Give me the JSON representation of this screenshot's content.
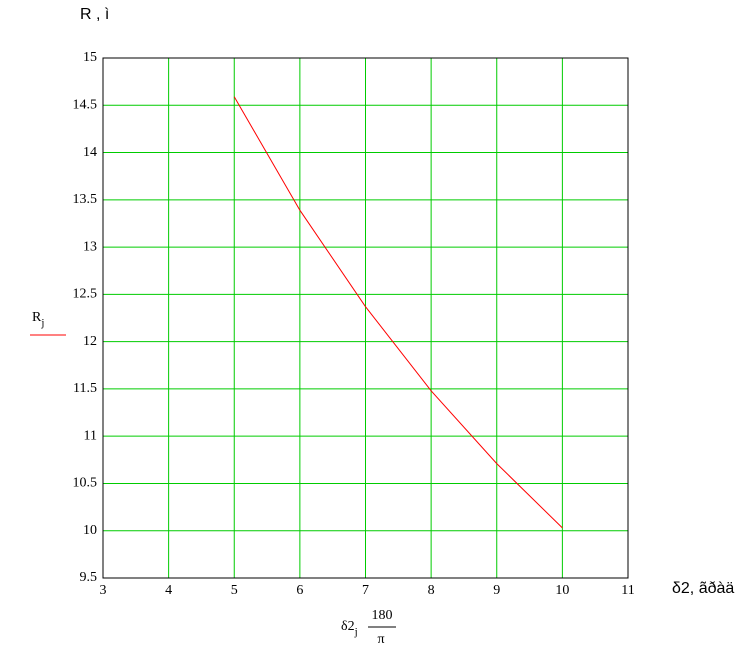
{
  "chart_data": {
    "type": "line",
    "title": "R , ì",
    "y_label": {
      "main": "R",
      "sub": "j"
    },
    "x_unit_label": "δ2, ãðàä",
    "x_label": {
      "main": "δ2",
      "sub": "j",
      "num": "180",
      "den": "π"
    },
    "x": [
      5,
      6,
      7,
      8,
      9,
      10
    ],
    "series": [
      {
        "color": "#ff0000",
        "values": [
          14.59,
          13.39,
          12.37,
          11.48,
          10.71,
          10.03
        ]
      }
    ],
    "xlim": [
      3,
      11
    ],
    "xticks": [
      3,
      4,
      5,
      6,
      7,
      8,
      9,
      10,
      11
    ],
    "ylim": [
      9.5,
      15
    ],
    "yticks": [
      9.5,
      10,
      10.5,
      11,
      11.5,
      12,
      12.5,
      13,
      13.5,
      14,
      14.5,
      15
    ],
    "grid": true,
    "grid_color": "#00cc00"
  }
}
